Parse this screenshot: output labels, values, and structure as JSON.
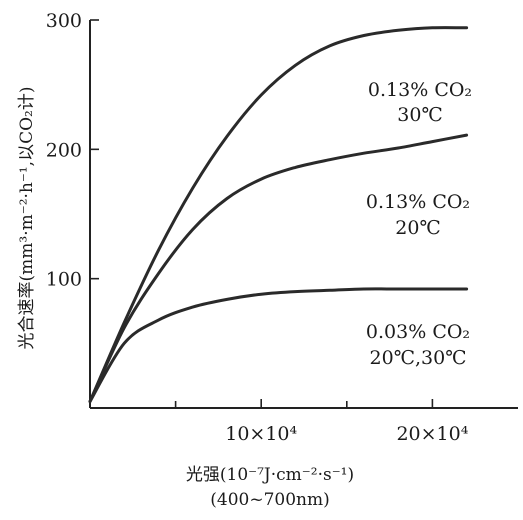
{
  "chart_data": {
    "type": "line",
    "title": "",
    "xlabel": "光强(10⁻⁷J·cm⁻²·s⁻¹)",
    "xlabel_line2": "(400~700nm)",
    "ylabel": "光合速率(mm³·m⁻²·h⁻¹,以CO₂计)",
    "xlim": [
      0,
      25
    ],
    "ylim": [
      0,
      300
    ],
    "x_unit_label": "×10⁴",
    "x_ticks": [
      {
        "value": 10,
        "label": "10×10⁴"
      },
      {
        "value": 20,
        "label": "20×10⁴"
      }
    ],
    "x_minor_ticks": [
      5,
      15
    ],
    "y_ticks": [
      {
        "value": 100,
        "label": "100"
      },
      {
        "value": 200,
        "label": "200"
      },
      {
        "value": 300,
        "label": "300"
      }
    ],
    "grid": false,
    "legend": "inline labels to the right of each curve",
    "series": [
      {
        "name": "0.13% CO₂ 30℃",
        "name_line1": "0.13% CO₂",
        "name_line2": "30℃",
        "x": [
          0,
          2,
          4,
          6,
          8,
          10,
          12,
          14,
          16,
          18,
          20,
          22
        ],
        "y": [
          5,
          66,
          122,
          170,
          210,
          242,
          265,
          280,
          288,
          292,
          294,
          294
        ]
      },
      {
        "name": "0.13% CO₂ 20℃",
        "name_line1": "0.13% CO₂",
        "name_line2": "20℃",
        "x": [
          0,
          2,
          4,
          6,
          8,
          10,
          12,
          14,
          16,
          18,
          20,
          22
        ],
        "y": [
          5,
          62,
          104,
          138,
          162,
          177,
          186,
          192,
          197,
          201,
          206,
          211
        ]
      },
      {
        "name": "0.03% CO₂ 20℃,30℃",
        "name_line1": "0.03% CO₂",
        "name_line2": "20℃,30℃",
        "x": [
          0,
          2,
          4,
          6,
          8,
          10,
          12,
          14,
          16,
          18,
          20,
          22
        ],
        "y": [
          5,
          50,
          68,
          78,
          84,
          88,
          90,
          91,
          92,
          92,
          92,
          92
        ]
      }
    ]
  }
}
